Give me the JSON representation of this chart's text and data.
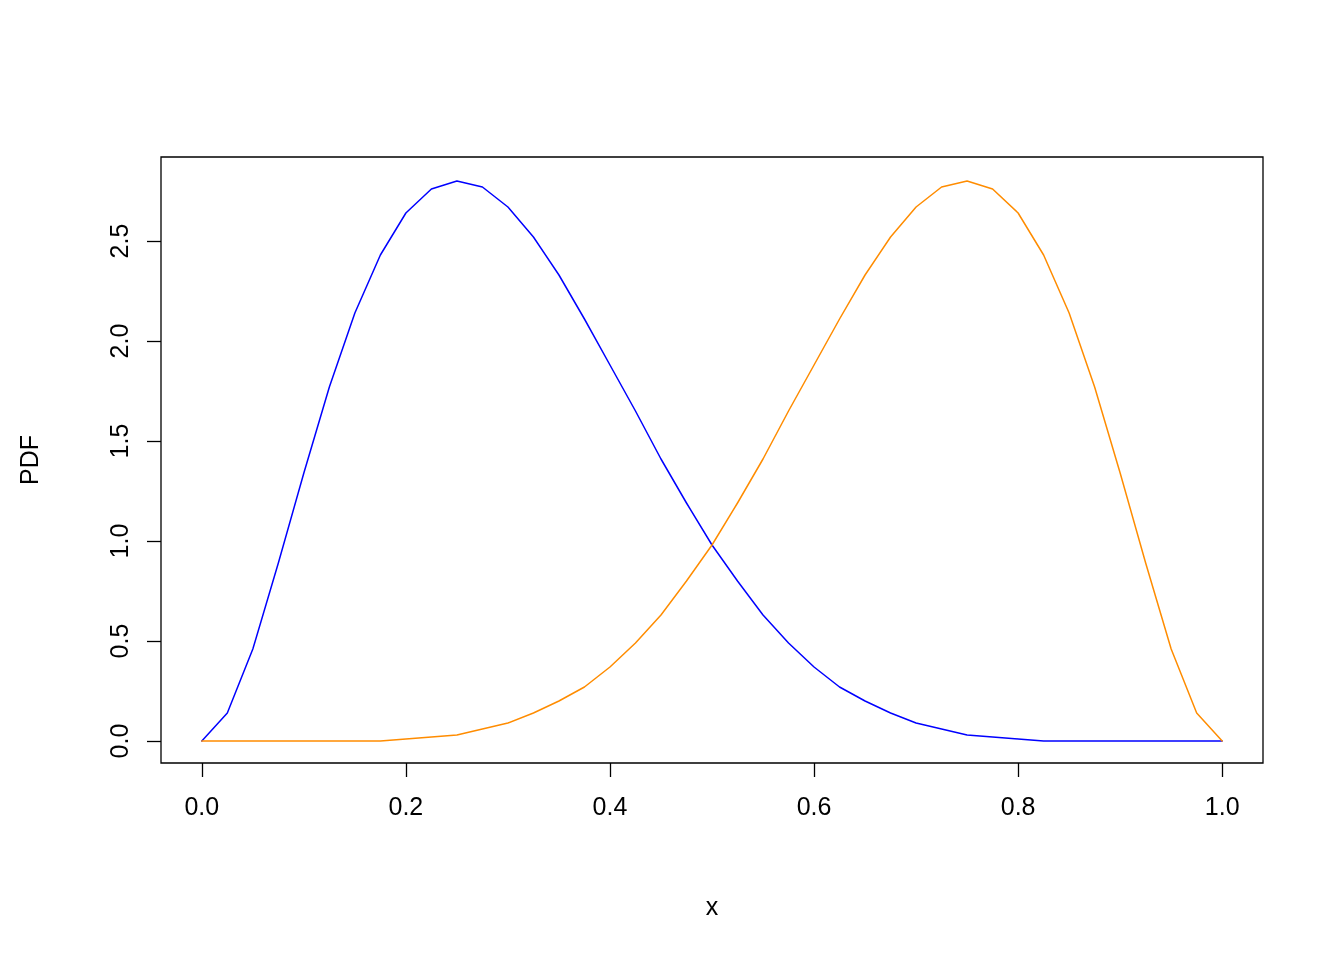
{
  "chart_data": {
    "type": "line",
    "xlabel": "x",
    "ylabel": "PDF",
    "x": [
      0,
      0.025,
      0.05,
      0.075,
      0.1,
      0.125,
      0.15,
      0.175,
      0.2,
      0.225,
      0.25,
      0.275,
      0.3,
      0.325,
      0.35,
      0.375,
      0.4,
      0.425,
      0.45,
      0.475,
      0.5,
      0.525,
      0.55,
      0.575,
      0.6,
      0.625,
      0.65,
      0.675,
      0.7,
      0.725,
      0.75,
      0.775,
      0.8,
      0.825,
      0.85,
      0.875,
      0.9,
      0.925,
      0.95,
      0.975,
      1
    ],
    "series": [
      {
        "color": "#0000ff",
        "values": [
          0,
          0.14,
          0.46,
          0.89,
          1.34,
          1.77,
          2.14,
          2.43,
          2.64,
          2.76,
          2.8,
          2.77,
          2.67,
          2.52,
          2.33,
          2.11,
          1.88,
          1.65,
          1.41,
          1.19,
          0.98,
          0.8,
          0.63,
          0.49,
          0.37,
          0.27,
          0.2,
          0.14,
          0.09,
          0.06,
          0.03,
          0.02,
          0.01,
          0,
          0,
          0,
          0,
          0,
          0,
          0,
          0
        ]
      },
      {
        "color": "#ff8c00",
        "values": [
          0,
          0,
          0,
          0,
          0,
          0,
          0,
          0,
          0.01,
          0.02,
          0.03,
          0.06,
          0.09,
          0.14,
          0.2,
          0.27,
          0.37,
          0.49,
          0.63,
          0.8,
          0.98,
          1.19,
          1.41,
          1.65,
          1.88,
          2.11,
          2.33,
          2.52,
          2.67,
          2.77,
          2.8,
          2.76,
          2.64,
          2.43,
          2.14,
          1.77,
          1.34,
          0.89,
          0.46,
          0.14,
          0
        ]
      }
    ],
    "xlim": [
      -0.04,
      1.04
    ],
    "ylim": [
      -0.11,
      2.92
    ],
    "xticks": [
      {
        "value": 0,
        "label": "0.0"
      },
      0.2,
      0.4,
      0.6,
      0.8,
      {
        "value": 1,
        "label": "1.0"
      }
    ],
    "yticks": [
      {
        "value": 0,
        "label": "0.0"
      },
      0.5,
      {
        "value": 1,
        "label": "1.0"
      },
      1.5,
      {
        "value": 2,
        "label": "2.0"
      },
      2.5
    ],
    "grid": false,
    "marker": "none",
    "line_style": "solid"
  }
}
